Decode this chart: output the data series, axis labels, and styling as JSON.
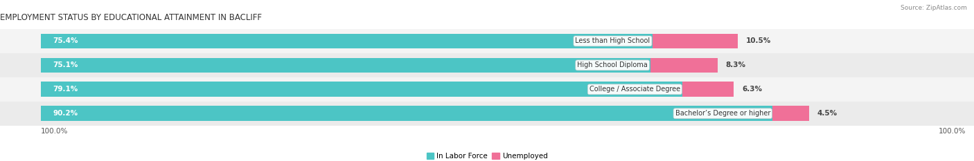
{
  "title": "EMPLOYMENT STATUS BY EDUCATIONAL ATTAINMENT IN BACLIFF",
  "source": "Source: ZipAtlas.com",
  "categories": [
    "Less than High School",
    "High School Diploma",
    "College / Associate Degree",
    "Bachelor’s Degree or higher"
  ],
  "labor_force": [
    75.4,
    75.1,
    79.1,
    90.2
  ],
  "unemployed": [
    10.5,
    8.3,
    6.3,
    4.5
  ],
  "labor_force_color": "#4CC5C5",
  "unemployed_color": "#F07098",
  "row_bg_even": "#F0F0F0",
  "row_bg_odd": "#E4E4E4",
  "x_left_label": "100.0%",
  "x_right_label": "100.0%",
  "legend_labor": "In Labor Force",
  "legend_unemployed": "Unemployed",
  "title_fontsize": 8.5,
  "bar_height": 0.62,
  "figsize": [
    14.06,
    2.33
  ],
  "dpi": 100,
  "xlim_left": -5,
  "xlim_right": 115,
  "scale": 1.0
}
